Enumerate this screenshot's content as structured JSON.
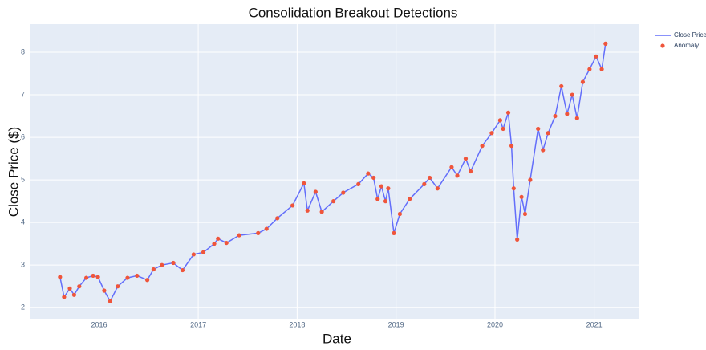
{
  "chart_data": {
    "type": "line",
    "title": "Consolidation Breakout Detections",
    "x_label": "Date",
    "y_label": "Close Price ($)",
    "x": [
      "2015-08-10",
      "2015-08-25",
      "2015-09-15",
      "2015-10-01",
      "2015-10-20",
      "2015-11-15",
      "2015-12-10",
      "2015-12-28",
      "2016-01-20",
      "2016-02-11",
      "2016-03-10",
      "2016-04-15",
      "2016-05-20",
      "2016-06-27",
      "2016-07-20",
      "2016-08-20",
      "2016-10-01",
      "2016-11-04",
      "2016-12-15",
      "2017-01-20",
      "2017-03-01",
      "2017-03-15",
      "2017-04-15",
      "2017-06-01",
      "2017-08-10",
      "2017-09-10",
      "2017-10-20",
      "2017-12-15",
      "2018-01-26",
      "2018-02-08",
      "2018-03-10",
      "2018-04-02",
      "2018-05-15",
      "2018-06-20",
      "2018-08-15",
      "2018-09-20",
      "2018-10-10",
      "2018-10-25",
      "2018-11-08",
      "2018-11-23",
      "2018-12-03",
      "2018-12-24",
      "2019-01-15",
      "2019-02-20",
      "2019-04-15",
      "2019-05-05",
      "2019-06-03",
      "2019-07-25",
      "2019-08-15",
      "2019-09-15",
      "2019-10-03",
      "2019-11-15",
      "2019-12-20",
      "2020-01-20",
      "2020-01-31",
      "2020-02-19",
      "2020-03-02",
      "2020-03-10",
      "2020-03-23",
      "2020-04-08",
      "2020-04-21",
      "2020-05-10",
      "2020-06-08",
      "2020-06-26",
      "2020-07-15",
      "2020-08-10",
      "2020-09-02",
      "2020-09-23",
      "2020-10-12",
      "2020-10-30",
      "2020-11-20",
      "2020-12-15",
      "2021-01-08",
      "2021-01-29",
      "2021-02-12"
    ],
    "series": [
      {
        "name": "Close Price",
        "color": "#636efa",
        "mode": "line",
        "values": [
          2.72,
          2.25,
          2.45,
          2.3,
          2.5,
          2.7,
          2.75,
          2.72,
          2.4,
          2.15,
          2.5,
          2.7,
          2.75,
          2.65,
          2.9,
          3.0,
          3.05,
          2.88,
          3.25,
          3.3,
          3.5,
          3.62,
          3.52,
          3.7,
          3.75,
          3.85,
          4.1,
          4.4,
          4.92,
          4.28,
          4.72,
          4.25,
          4.5,
          4.7,
          4.9,
          5.15,
          5.05,
          4.55,
          4.85,
          4.5,
          4.8,
          3.75,
          4.2,
          4.55,
          4.9,
          5.05,
          4.8,
          5.3,
          5.1,
          5.5,
          5.2,
          5.8,
          6.1,
          6.4,
          6.2,
          6.58,
          5.8,
          4.8,
          3.6,
          4.6,
          4.2,
          5.0,
          6.2,
          5.7,
          6.1,
          6.5,
          7.2,
          6.55,
          7.0,
          6.45,
          7.3,
          7.6,
          7.9,
          7.6,
          8.2
        ]
      },
      {
        "name": "Anomaly",
        "color": "#ef553b",
        "mode": "markers",
        "values": [
          2.72,
          2.25,
          2.45,
          2.3,
          2.5,
          2.7,
          2.75,
          2.72,
          2.4,
          2.15,
          2.5,
          2.7,
          2.75,
          2.65,
          2.9,
          3.0,
          3.05,
          2.88,
          3.25,
          3.3,
          3.5,
          3.62,
          3.52,
          3.7,
          3.75,
          3.85,
          4.1,
          4.4,
          4.92,
          4.28,
          4.72,
          4.25,
          4.5,
          4.7,
          4.9,
          5.15,
          5.05,
          4.55,
          4.85,
          4.5,
          4.8,
          3.75,
          4.2,
          4.55,
          4.9,
          5.05,
          4.8,
          5.3,
          5.1,
          5.5,
          5.2,
          5.8,
          6.1,
          6.4,
          6.2,
          6.58,
          5.8,
          4.8,
          3.6,
          4.6,
          4.2,
          5.0,
          6.2,
          5.7,
          6.1,
          6.5,
          7.2,
          6.55,
          7.0,
          6.45,
          7.3,
          7.6,
          7.9,
          7.6,
          8.2
        ]
      }
    ],
    "xlim": [
      "2015-04-20",
      "2021-06-14"
    ],
    "xticks": [
      {
        "value": "2016-01-01",
        "label": "2016"
      },
      {
        "value": "2017-01-01",
        "label": "2017"
      },
      {
        "value": "2018-01-01",
        "label": "2018"
      },
      {
        "value": "2019-01-01",
        "label": "2019"
      },
      {
        "value": "2020-01-01",
        "label": "2020"
      },
      {
        "value": "2021-01-01",
        "label": "2021"
      }
    ],
    "ylim": [
      1.74,
      8.66
    ],
    "yticks": [
      2,
      3,
      4,
      5,
      6,
      7,
      8
    ],
    "grid": true,
    "legend": "top-right"
  }
}
